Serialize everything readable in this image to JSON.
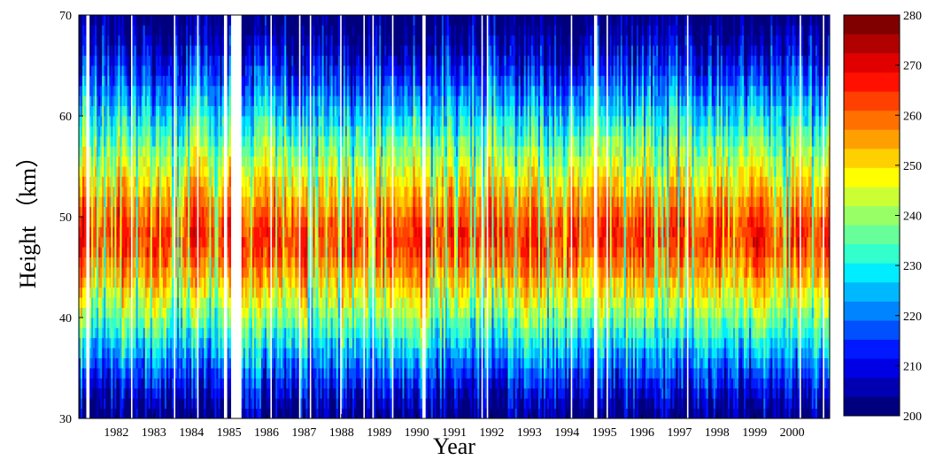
{
  "chart_data": {
    "type": "heatmap",
    "title": "",
    "xlabel": "Year",
    "ylabel": "Height （km）",
    "x_ticks": [
      "1982",
      "1983",
      "1984",
      "1985",
      "1986",
      "1987",
      "1988",
      "1989",
      "1990",
      "1991",
      "1992",
      "1993",
      "1994",
      "1995",
      "1996",
      "1997",
      "1998",
      "1999",
      "2000"
    ],
    "x_range": [
      1981.0,
      2001.0
    ],
    "y_ticks": [
      30,
      40,
      50,
      60,
      70
    ],
    "ylim": [
      30,
      70
    ],
    "colorbar": {
      "ticks": [
        200,
        210,
        220,
        230,
        240,
        250,
        260,
        270,
        280
      ],
      "range": [
        200,
        280
      ],
      "levels": 24,
      "colors": [
        "#00007f",
        "#0000b2",
        "#0000e5",
        "#0019ff",
        "#0050ff",
        "#0084ff",
        "#00b8ff",
        "#00ecff",
        "#33ffcc",
        "#66ff99",
        "#99ff66",
        "#ccff33",
        "#ffff00",
        "#ffd000",
        "#ffa000",
        "#ff7000",
        "#ff4000",
        "#ff1000",
        "#e00000",
        "#b00000",
        "#800000"
      ]
    },
    "z_description_values": {
      "stratopause_peak_height_km": 48,
      "peak_temperature_range": [
        265,
        275
      ],
      "top_temperature_range": [
        205,
        225
      ],
      "bottom_temperature_range": [
        205,
        235
      ]
    },
    "grid": false,
    "legend": "colorbar-right"
  }
}
